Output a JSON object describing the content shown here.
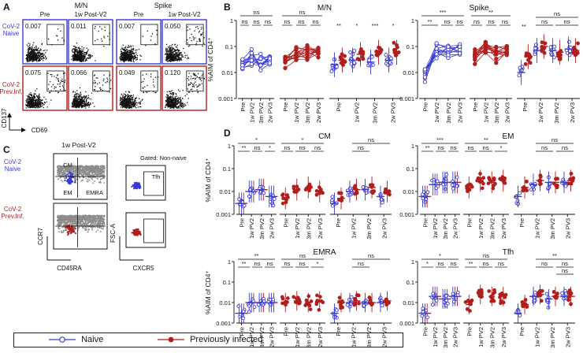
{
  "panels": {
    "A": "A",
    "B": "B",
    "C": "C",
    "D": "D"
  },
  "panelA": {
    "col_group_mn": "M/N",
    "col_group_spike": "Spike",
    "col_headers": [
      "Pre",
      "1w Post-V2",
      "Pre",
      "1w Post-V2"
    ],
    "row_naive": [
      "CoV-2",
      "Naive"
    ],
    "row_prev": [
      "CoV-2",
      "Prev.Inf."
    ],
    "gate_values_naive": [
      "0.007",
      "0.011",
      "0.007",
      "0.050"
    ],
    "gate_values_prev": [
      "0.075",
      "0.066",
      "0.049",
      "0.120"
    ],
    "y_axis": "CD137",
    "x_axis": "CD69"
  },
  "panelB": {
    "title_mn": "M/N",
    "title_spike": "Spike",
    "y_label": "%AIM of CD4⁺",
    "y_ticks": [
      "1",
      "0.1",
      "0.01",
      "0.001"
    ],
    "x_ticks": [
      "Pre",
      "1w PV2",
      "3m PV2",
      "2w PV3"
    ],
    "sig_mn_paired_naive": [
      "ns",
      "ns",
      "ns",
      "ns"
    ],
    "sig_mn_paired_prev": [
      "ns",
      "ns",
      "ns",
      "ns"
    ],
    "sig_mn_unpaired": [
      "**",
      "*",
      "***",
      "*"
    ],
    "sig_spike_paired_naive": [
      "***",
      "**",
      "ns",
      "ns"
    ],
    "sig_spike_paired_prev": [
      "**",
      "ns",
      "ns",
      "ns"
    ],
    "sig_spike_unpaired": [
      "**",
      "ns",
      "ns",
      "ns",
      "ns"
    ]
  },
  "panelC": {
    "title_left": "1w Post-V2",
    "title_right": "Gated: Non-naive",
    "row_naive": [
      "CoV-2",
      "Naive"
    ],
    "row_prev": [
      "CoV-2",
      "Prev.Inf."
    ],
    "gate_labels": [
      "CM",
      "EM",
      "EMRA",
      "Tfh"
    ],
    "y_left": "CCR7",
    "x_left": "CD45RA",
    "y_right": "FSC-A",
    "x_right": "CXCR5"
  },
  "panelD": {
    "titles": [
      "CM",
      "EM",
      "EMRA",
      "Tfh"
    ],
    "y_label": "%AIM of CD4⁺",
    "y_ticks": [
      "1",
      "0.1",
      "0.01",
      "0.001"
    ],
    "x_ticks": [
      "Pre",
      "1w PV2",
      "3m PV2",
      "2w PV3"
    ],
    "sig_cm": [
      "*",
      "**",
      "ns",
      "*",
      "*",
      "ns",
      "ns",
      "ns",
      "ns",
      "ns"
    ],
    "sig_em": [
      "***",
      "**",
      "ns",
      "ns",
      "**",
      "ns",
      "ns",
      "*",
      "ns",
      "ns",
      "ns"
    ],
    "sig_emra": [
      "**",
      "**",
      "ns",
      "ns",
      "ns",
      "ns",
      "ns",
      "*",
      "ns",
      "ns"
    ],
    "sig_tfh": [
      "*",
      "*",
      "ns",
      "ns",
      "ns",
      "**",
      "ns",
      "ns",
      "**",
      "ns",
      "ns",
      "ns"
    ]
  },
  "legend": {
    "naive": "Naive",
    "prev": "Previously infected"
  },
  "colors": {
    "naive": "#3a3ad6",
    "prev": "#b01e1e",
    "naive_fill": "#ffffff",
    "prev_fill": "#b01e1e",
    "flow": "#111111",
    "gray": "#8c8c8c"
  },
  "chart_data": [
    {
      "type": "scatter",
      "title": "M/N",
      "ylabel": "%AIM of CD4+",
      "yscale": "log",
      "ylim": [
        0.001,
        1
      ],
      "categories": [
        "Pre",
        "1w PV2",
        "3m PV2",
        "2w PV3"
      ],
      "series": [
        {
          "name": "Naive",
          "medians": [
            0.02,
            0.03,
            0.025,
            0.03
          ]
        },
        {
          "name": "Previously infected",
          "medians": [
            0.03,
            0.05,
            0.06,
            0.06
          ]
        }
      ]
    },
    {
      "type": "scatter",
      "title": "Spike",
      "ylabel": "%AIM of CD4+",
      "yscale": "log",
      "ylim": [
        0.001,
        1
      ],
      "categories": [
        "Pre",
        "1w PV2",
        "3m PV2",
        "2w PV3"
      ],
      "series": [
        {
          "name": "Naive",
          "medians": [
            0.01,
            0.07,
            0.07,
            0.08
          ]
        },
        {
          "name": "Previously infected",
          "medians": [
            0.04,
            0.1,
            0.06,
            0.07
          ]
        }
      ]
    },
    {
      "type": "scatter",
      "title": "CM",
      "ylabel": "%AIM of CD4+",
      "yscale": "log",
      "ylim": [
        0.001,
        1
      ],
      "categories": [
        "Pre",
        "1w PV2",
        "3m PV2",
        "2w PV3"
      ],
      "series": [
        {
          "name": "Naive",
          "medians": [
            0.003,
            0.01,
            0.012,
            0.006
          ]
        },
        {
          "name": "Previously infected",
          "medians": [
            0.005,
            0.012,
            0.015,
            0.01
          ]
        }
      ]
    },
    {
      "type": "scatter",
      "title": "EM",
      "ylabel": "%AIM of CD4+",
      "yscale": "log",
      "ylim": [
        0.001,
        1
      ],
      "categories": [
        "Pre",
        "1w PV2",
        "3m PV2",
        "2w PV3"
      ],
      "series": [
        {
          "name": "Naive",
          "medians": [
            0.006,
            0.02,
            0.025,
            0.025
          ]
        },
        {
          "name": "Previously infected",
          "medians": [
            0.015,
            0.03,
            0.025,
            0.03
          ]
        }
      ]
    },
    {
      "type": "scatter",
      "title": "EMRA",
      "ylabel": "%AIM of CD4+",
      "yscale": "log",
      "ylim": [
        0.001,
        1
      ],
      "categories": [
        "Pre",
        "1w PV2",
        "3m PV2",
        "2w PV3"
      ],
      "series": [
        {
          "name": "Naive",
          "medians": [
            0.003,
            0.01,
            0.01,
            0.01
          ]
        },
        {
          "name": "Previously infected",
          "medians": [
            0.01,
            0.012,
            0.01,
            0.012
          ]
        }
      ]
    },
    {
      "type": "scatter",
      "title": "Tfh",
      "ylabel": "%AIM of CD4+",
      "yscale": "log",
      "ylim": [
        0.001,
        1
      ],
      "categories": [
        "Pre",
        "1w PV2",
        "3m PV2",
        "2w PV3"
      ],
      "series": [
        {
          "name": "Naive",
          "medians": [
            0.003,
            0.02,
            0.015,
            0.02
          ]
        },
        {
          "name": "Previously infected",
          "medians": [
            0.008,
            0.025,
            0.02,
            0.02
          ]
        }
      ]
    }
  ]
}
